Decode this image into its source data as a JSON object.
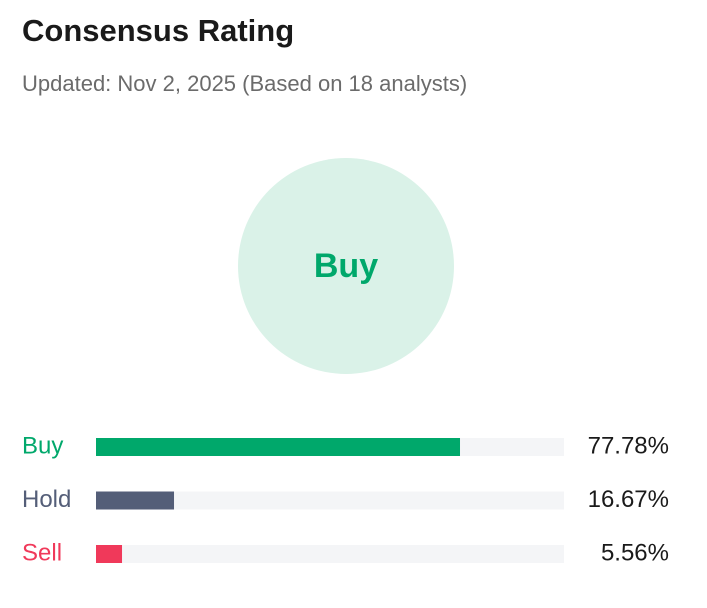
{
  "chart_data": {
    "type": "hbar",
    "title": "Consensus Rating",
    "subtitle": "Updated: Nov 2, 2025 (Based on 18 analysts)",
    "rating": "Buy",
    "categories": [
      "Buy",
      "Hold",
      "Sell"
    ],
    "values": [
      77.78,
      16.67,
      5.56
    ],
    "value_labels": [
      "77.78%",
      "16.67%",
      "5.56%"
    ],
    "colors": [
      "#00a86b",
      "#545e78",
      "#f0395a"
    ],
    "xlim": [
      0,
      100
    ]
  }
}
